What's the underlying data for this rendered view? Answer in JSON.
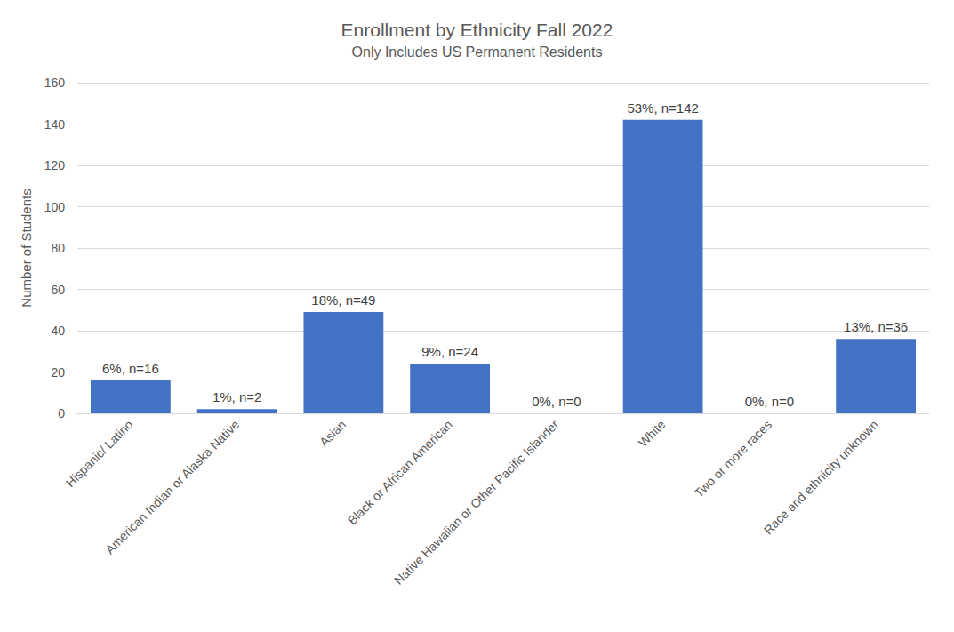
{
  "chart_data": {
    "type": "bar",
    "title": "Enrollment by Ethnicity Fall 2022",
    "subtitle": "Only Includes US Permanent Residents",
    "y_label": "Number of Students",
    "categories": [
      "Hispanic/ Latino",
      "American Indian or Alaska Native",
      "Asian",
      "Black or African American",
      "Native Hawaiian or Other Pacific Islander",
      "White",
      "Two or more races",
      "Race and ethnicity unknown"
    ],
    "values": [
      16,
      2,
      49,
      24,
      0,
      142,
      0,
      36
    ],
    "value_labels": [
      "6%, n=16",
      "1%, n=2",
      "18%, n=49",
      "9%, n=24",
      "0%, n=0",
      "53%, n=142",
      "0%, n=0",
      "13%, n=36"
    ],
    "color": "#4472c4",
    "ylim": [
      0,
      160
    ],
    "yticks": [
      0,
      20,
      40,
      60,
      80,
      100,
      120,
      140,
      160
    ],
    "grid": true,
    "data_labels": true
  }
}
